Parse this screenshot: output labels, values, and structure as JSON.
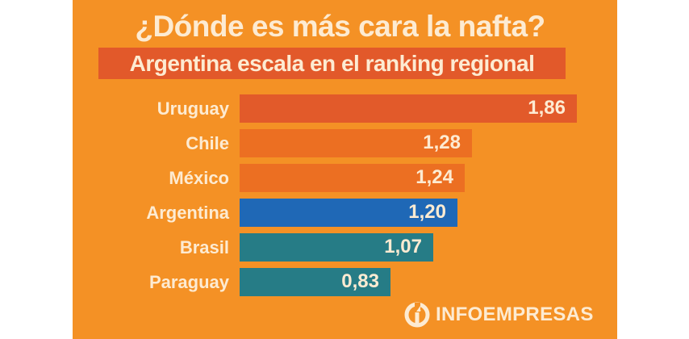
{
  "chart_data": {
    "type": "bar",
    "orientation": "horizontal",
    "title": "¿Dónde es más cara la nafta?",
    "subtitle": "Argentina escala en el ranking regional",
    "categories": [
      "Uruguay",
      "Chile",
      "México",
      "Argentina",
      "Brasil",
      "Paraguay"
    ],
    "values": [
      1.86,
      1.28,
      1.24,
      1.2,
      1.07,
      0.83
    ],
    "value_labels": [
      "1,86",
      "1,28",
      "1,24",
      "1,20",
      "1,07",
      "0,83"
    ],
    "bar_colors": [
      "#e25a2a",
      "#ec6f22",
      "#ec6f22",
      "#1f68b6",
      "#267c86",
      "#267c86"
    ],
    "xlabel": "",
    "ylabel": "",
    "xlim": [
      0,
      1.86
    ],
    "grid": false,
    "legend": "none"
  },
  "brand": {
    "name": "INFOEMPRESAS",
    "icon": "infoempresas-logo-icon"
  },
  "colors": {
    "background": "#f49125",
    "subtitle_bg": "#e2592a",
    "text": "#fdebd2"
  }
}
